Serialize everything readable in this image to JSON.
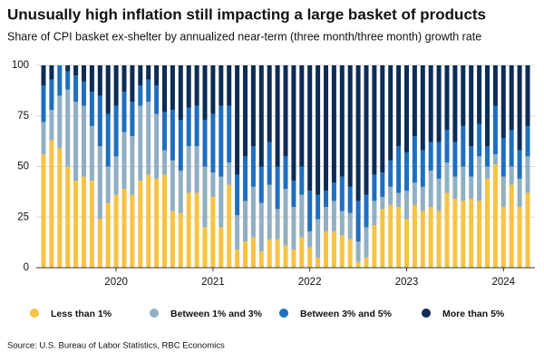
{
  "chart_data": {
    "type": "stacked-bar",
    "title": "Unusually high inflation still impacting a large basket of products",
    "subtitle": "Share of CPI basket ex-shelter by annualized near-term (three month/three month) growth rate",
    "source": "Source: U.S. Bureau of Labor Statistics, RBC Economics",
    "categories": [
      null,
      null,
      null,
      null,
      null,
      null,
      null,
      null,
      null,
      "2020",
      null,
      null,
      null,
      null,
      null,
      null,
      null,
      null,
      null,
      null,
      null,
      "2021",
      null,
      null,
      null,
      null,
      null,
      null,
      null,
      null,
      null,
      null,
      null,
      "2022",
      null,
      null,
      null,
      null,
      null,
      null,
      null,
      null,
      null,
      null,
      null,
      "2023",
      null,
      null,
      null,
      null,
      null,
      null,
      null,
      null,
      null,
      null,
      null,
      "2024",
      null,
      null,
      null
    ],
    "ylim": [
      0,
      100
    ],
    "yticks": [
      0,
      25,
      50,
      75,
      100
    ],
    "grid": true,
    "legend": "bottom",
    "series": [
      {
        "name": "Less than 1%",
        "color": "#f6c344",
        "values": [
          56,
          63,
          59,
          50,
          43,
          45,
          43,
          24,
          32,
          36,
          39,
          36,
          43,
          46,
          44,
          46,
          28,
          27,
          37,
          37,
          20,
          35,
          20,
          41,
          9,
          13,
          15,
          8,
          14,
          14,
          11,
          9,
          15,
          10,
          5,
          18,
          18,
          16,
          14,
          3,
          5,
          21,
          29,
          31,
          30,
          24,
          31,
          28,
          30,
          28,
          37,
          34,
          33,
          34,
          33,
          44,
          51,
          30,
          41,
          30,
          37
        ]
      },
      {
        "name": "Between 1% and 3%",
        "color": "#8fb0c2",
        "values": [
          16,
          15,
          26,
          38,
          39,
          35,
          27,
          36,
          18,
          19,
          28,
          29,
          37,
          36,
          32,
          12,
          25,
          21,
          23,
          23,
          30,
          12,
          25,
          11,
          17,
          20,
          25,
          24,
          27,
          15,
          28,
          21,
          21,
          8,
          19,
          12,
          15,
          12,
          13,
          10,
          15,
          12,
          6,
          9,
          7,
          14,
          11,
          12,
          18,
          16,
          15,
          11,
          17,
          11,
          22,
          6,
          5,
          15,
          9,
          14,
          18
        ]
      },
      {
        "name": "Between 3% and 5%",
        "color": "#1f6fbe",
        "values": [
          18,
          15,
          15,
          9,
          13,
          12,
          17,
          25,
          26,
          25,
          20,
          17,
          10,
          11,
          14,
          19,
          25,
          25,
          19,
          20,
          23,
          29,
          35,
          28,
          20,
          22,
          20,
          18,
          21,
          21,
          16,
          13,
          14,
          20,
          12,
          8,
          9,
          17,
          13,
          20,
          16,
          13,
          12,
          13,
          23,
          19,
          23,
          18,
          14,
          18,
          16,
          17,
          20,
          15,
          16,
          10,
          24,
          19,
          18,
          14,
          15
        ]
      },
      {
        "name": "More than 5%",
        "color": "#0d2c56",
        "values": [
          10,
          7,
          0,
          3,
          5,
          8,
          13,
          15,
          24,
          20,
          13,
          18,
          10,
          7,
          10,
          23,
          22,
          27,
          21,
          20,
          27,
          24,
          20,
          20,
          54,
          45,
          40,
          50,
          38,
          50,
          45,
          57,
          50,
          62,
          64,
          62,
          58,
          55,
          60,
          67,
          64,
          54,
          53,
          47,
          40,
          43,
          35,
          42,
          38,
          38,
          32,
          38,
          30,
          40,
          29,
          40,
          20,
          36,
          32,
          42,
          30
        ]
      }
    ]
  }
}
